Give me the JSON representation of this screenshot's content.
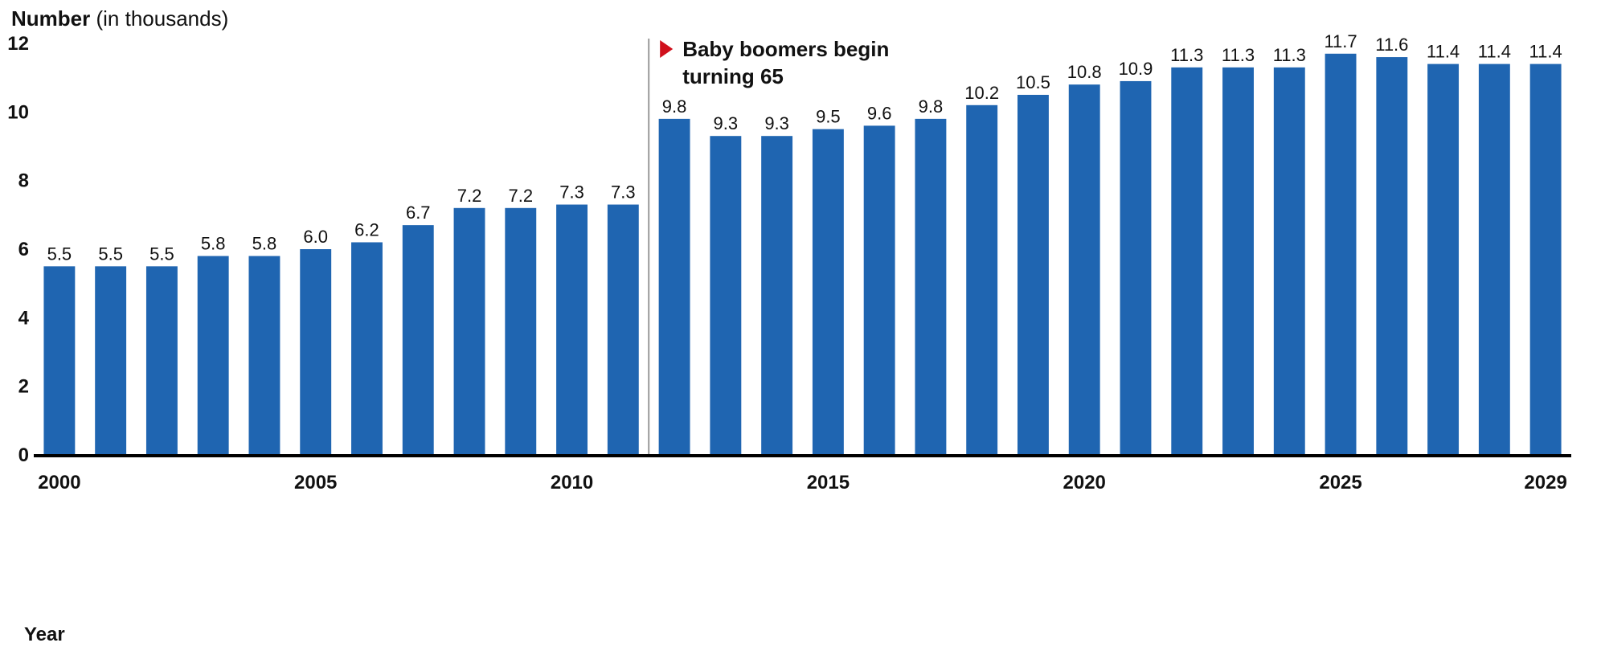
{
  "chart_data": {
    "type": "bar",
    "ylabel_bold": "Number",
    "ylabel_rest": " (in thousands)",
    "xlabel": "Year",
    "ylim": [
      0,
      12
    ],
    "yticks": [
      0,
      2,
      4,
      6,
      8,
      10,
      12
    ],
    "categories": [
      2000,
      2001,
      2002,
      2003,
      2004,
      2005,
      2006,
      2007,
      2008,
      2009,
      2010,
      2011,
      2012,
      2013,
      2014,
      2015,
      2016,
      2017,
      2018,
      2019,
      2020,
      2021,
      2022,
      2023,
      2024,
      2025,
      2026,
      2027,
      2028,
      2029
    ],
    "xtick_labels_shown": [
      "2000",
      "2005",
      "2010",
      "2015",
      "2020",
      "2025",
      "2029"
    ],
    "values": [
      5.5,
      5.5,
      5.5,
      5.8,
      5.8,
      6.0,
      6.2,
      6.7,
      7.2,
      7.2,
      7.3,
      7.3,
      9.8,
      9.3,
      9.3,
      9.5,
      9.6,
      9.8,
      10.2,
      10.5,
      10.8,
      10.9,
      11.3,
      11.3,
      11.3,
      11.7,
      11.6,
      11.4,
      11.4,
      11.4
    ],
    "value_labels": [
      "5.5",
      "5.5",
      "5.5",
      "5.8",
      "5.8",
      "6.0",
      "6.2",
      "6.7",
      "7.2",
      "7.2",
      "7.3",
      "7.3",
      "9.8",
      "9.3",
      "9.3",
      "9.5",
      "9.6",
      "9.8",
      "10.2",
      "10.5",
      "10.8",
      "10.9",
      "11.3",
      "11.3",
      "11.3",
      "11.7",
      "11.6",
      "11.4",
      "11.4",
      "11.4"
    ],
    "annotation": {
      "lines": [
        "Baby boomers begin",
        "turning 65"
      ],
      "after_category": 2011
    },
    "colors": {
      "bar": "#1f65b1",
      "axis": "#000000",
      "marker_line": "#9a9a9a",
      "annotation_marker": "#d0101c"
    },
    "grid": false,
    "legend": "none"
  }
}
